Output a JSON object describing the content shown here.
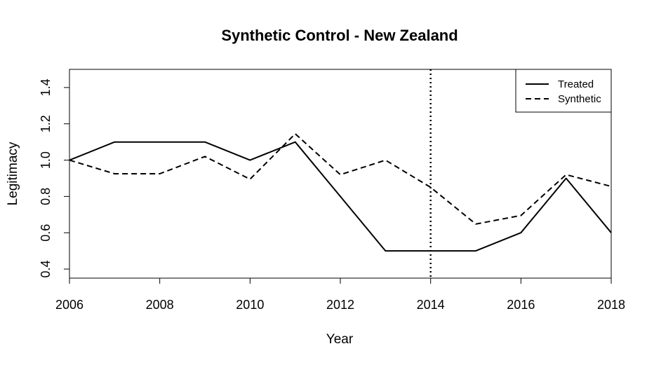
{
  "chart_data": {
    "type": "line",
    "title": "Synthetic Control - New Zealand",
    "xlabel": "Year",
    "ylabel": "Legitimacy",
    "xlim": [
      2006,
      2018
    ],
    "ylim": [
      0.35,
      1.5
    ],
    "x_ticks": [
      2006,
      2008,
      2010,
      2012,
      2014,
      2016,
      2018
    ],
    "x_tick_labels": [
      "2006",
      "2008",
      "2010",
      "2012",
      "2014",
      "2016",
      "2018"
    ],
    "y_ticks": [
      0.4,
      0.6,
      0.8,
      1.0,
      1.2,
      1.4
    ],
    "y_tick_labels": [
      "0.4",
      "0.6",
      "0.8",
      "1.0",
      "1.2",
      "1.4"
    ],
    "x": [
      2006,
      2007,
      2008,
      2009,
      2010,
      2011,
      2012,
      2013,
      2014,
      2015,
      2016,
      2017,
      2018
    ],
    "series": [
      {
        "name": "Treated",
        "style": "solid",
        "color": "#000000",
        "values": [
          1.0,
          1.1,
          1.1,
          1.1,
          1.0,
          1.1,
          0.8,
          0.5,
          0.5,
          0.5,
          0.6,
          0.9,
          0.6
        ]
      },
      {
        "name": "Synthetic",
        "style": "dashed",
        "color": "#000000",
        "values": [
          1.0,
          0.925,
          0.925,
          1.02,
          0.895,
          1.145,
          0.92,
          1.0,
          0.85,
          0.648,
          0.695,
          0.92,
          0.855
        ]
      }
    ],
    "vline": {
      "x": 2014,
      "style": "dotted"
    },
    "legend_position": "top-right",
    "grid": false
  }
}
